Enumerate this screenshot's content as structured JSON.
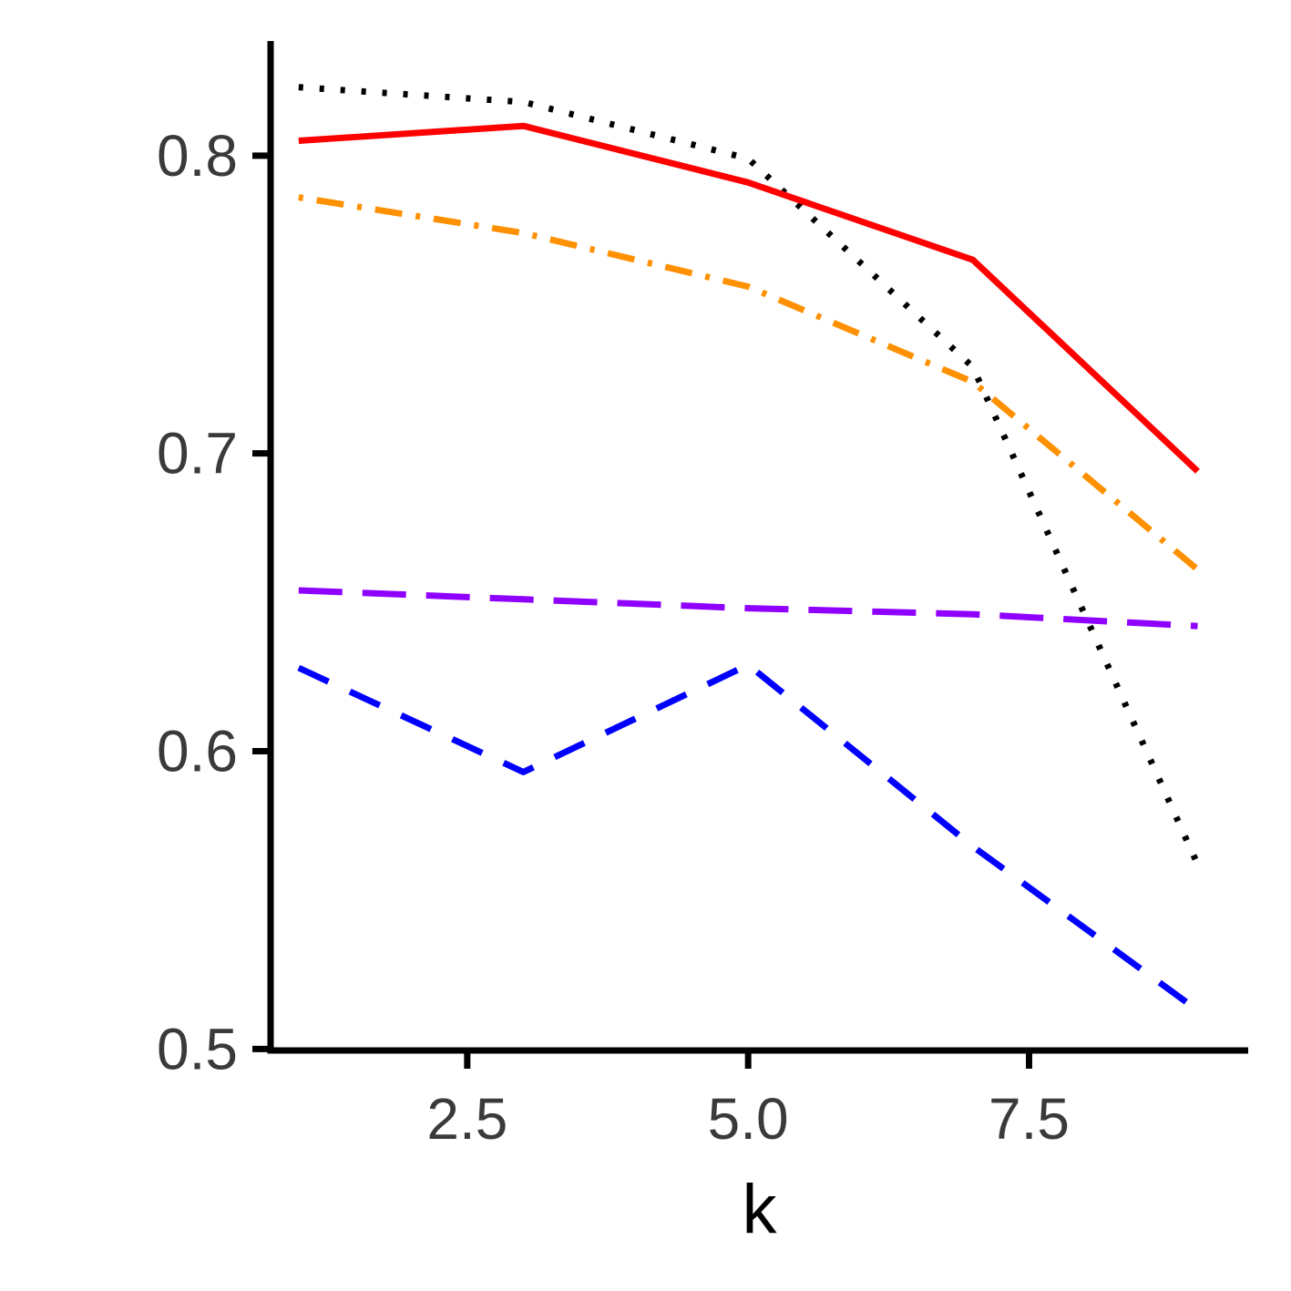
{
  "chart_data": {
    "type": "line",
    "xlabel": "k",
    "ylabel": "",
    "xlim": [
      0.75,
      9.45
    ],
    "ylim": [
      0.4995,
      0.8385
    ],
    "x_ticks": [
      2.5,
      5.0,
      7.5
    ],
    "x_tick_labels": [
      "2.5",
      "5.0",
      "7.5"
    ],
    "y_ticks": [
      0.5,
      0.6,
      0.7,
      0.8
    ],
    "y_tick_labels": [
      "0.5",
      "0.6",
      "0.7",
      "0.8"
    ],
    "grid": false,
    "legend": "none",
    "x": [
      1,
      3,
      5,
      7,
      9
    ],
    "series": [
      {
        "id": "dotted-black",
        "color": "#000000",
        "style": "dotted",
        "values": [
          0.823,
          0.818,
          0.799,
          0.729,
          0.562
        ]
      },
      {
        "id": "solid-red",
        "color": "#ff0000",
        "style": "solid",
        "values": [
          0.805,
          0.81,
          0.791,
          0.765,
          0.694
        ]
      },
      {
        "id": "dotdash-orange",
        "color": "#ff9000",
        "style": "dotdash",
        "values": [
          0.786,
          0.774,
          0.756,
          0.724,
          0.661
        ]
      },
      {
        "id": "longdash-purple",
        "color": "#8f00ff",
        "style": "longdash",
        "values": [
          0.654,
          0.651,
          0.648,
          0.646,
          0.642
        ]
      },
      {
        "id": "dashed-blue",
        "color": "#0000ff",
        "style": "dashed",
        "values": [
          0.628,
          0.593,
          0.629,
          0.568,
          0.513
        ]
      }
    ]
  }
}
